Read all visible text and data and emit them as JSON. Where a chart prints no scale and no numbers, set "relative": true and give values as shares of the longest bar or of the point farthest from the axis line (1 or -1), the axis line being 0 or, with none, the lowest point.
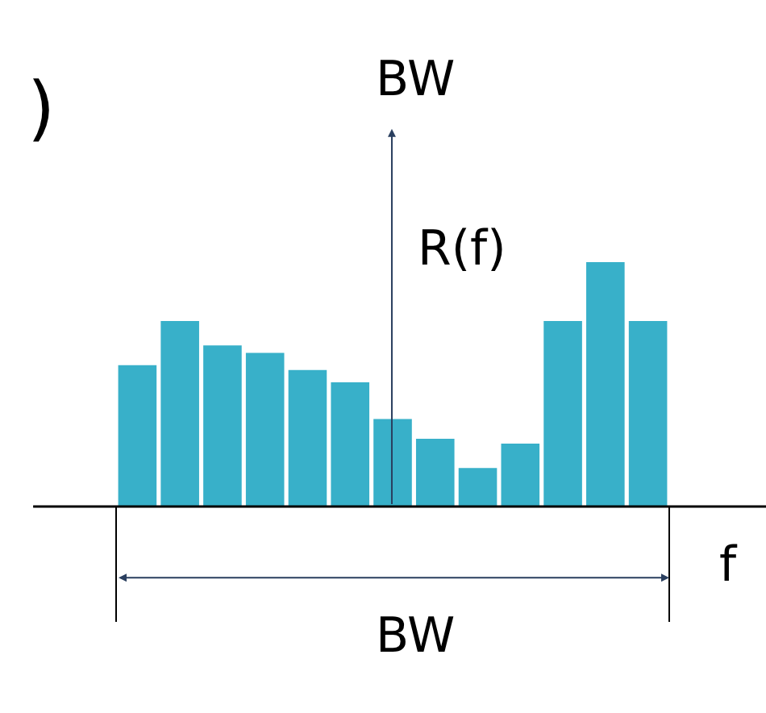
{
  "chart_data": {
    "type": "bar",
    "relative": true,
    "categories": [
      null,
      null,
      null,
      null,
      null,
      null,
      null,
      null,
      null,
      null,
      null,
      null,
      null
    ],
    "values": [
      0.58,
      0.76,
      0.66,
      0.63,
      0.56,
      0.51,
      0.36,
      0.28,
      0.16,
      0.26,
      0.76,
      1,
      0.76
    ],
    "color": "#38b0c9",
    "annotations": [
      ")",
      "BW",
      "R(f)",
      "f",
      "BW"
    ]
  }
}
